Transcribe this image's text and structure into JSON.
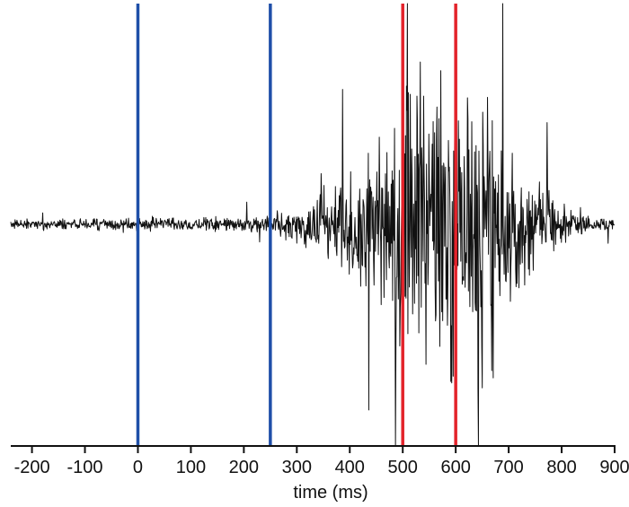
{
  "chart_data": {
    "type": "line",
    "title": "",
    "xlabel": "time (ms)",
    "ylabel": "",
    "xlim": [
      -240,
      900
    ],
    "ylim": [
      -1,
      1
    ],
    "x_ticks": [
      -200,
      -100,
      0,
      100,
      200,
      300,
      400,
      500,
      600,
      700,
      800,
      900
    ],
    "grid": false,
    "legend": "none",
    "series": [
      {
        "color": "#111111",
        "envelope": {
          "x": [
            -240,
            0,
            250,
            320,
            400,
            470,
            510,
            560,
            610,
            660,
            720,
            790,
            860,
            900
          ],
          "values": [
            0.03,
            0.04,
            0.05,
            0.15,
            0.36,
            0.55,
            0.95,
            0.8,
            1.0,
            0.9,
            0.45,
            0.16,
            0.05,
            0.04
          ]
        }
      }
    ],
    "vertical_lines": [
      {
        "x": 0,
        "color": "#1f4fa8"
      },
      {
        "x": 250,
        "color": "#1f4fa8"
      },
      {
        "x": 500,
        "color": "#e3232b"
      },
      {
        "x": 600,
        "color": "#e3232b"
      }
    ]
  }
}
